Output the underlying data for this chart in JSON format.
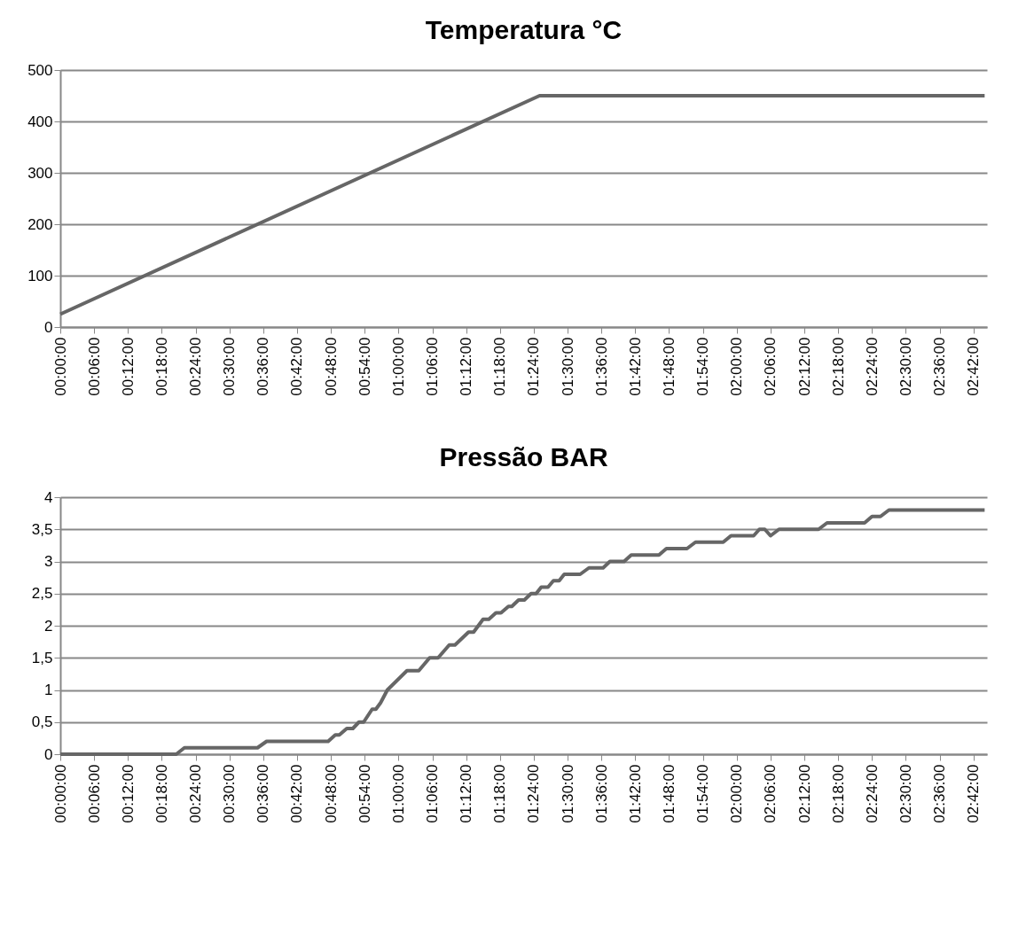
{
  "chart_data": [
    {
      "type": "line",
      "title": "Temperatura °C",
      "series": [
        {
          "color": "#666666",
          "x": [
            0,
            1.417,
            2.733
          ],
          "values": [
            25,
            450,
            450
          ]
        }
      ],
      "xlim": [
        0,
        2.74
      ],
      "xticks": [
        {
          "value": 0,
          "label": "00:00:00"
        },
        {
          "value": 0.1,
          "label": "00:06:00"
        },
        {
          "value": 0.2,
          "label": "00:12:00"
        },
        {
          "value": 0.3,
          "label": "00:18:00"
        },
        {
          "value": 0.4,
          "label": "00:24:00"
        },
        {
          "value": 0.5,
          "label": "00:30:00"
        },
        {
          "value": 0.6,
          "label": "00:36:00"
        },
        {
          "value": 0.7,
          "label": "00:42:00"
        },
        {
          "value": 0.8,
          "label": "00:48:00"
        },
        {
          "value": 0.9,
          "label": "00:54:00"
        },
        {
          "value": 1.0,
          "label": "01:00:00"
        },
        {
          "value": 1.1,
          "label": "01:06:00"
        },
        {
          "value": 1.2,
          "label": "01:12:00"
        },
        {
          "value": 1.3,
          "label": "01:18:00"
        },
        {
          "value": 1.4,
          "label": "01:24:00"
        },
        {
          "value": 1.5,
          "label": "01:30:00"
        },
        {
          "value": 1.6,
          "label": "01:36:00"
        },
        {
          "value": 1.7,
          "label": "01:42:00"
        },
        {
          "value": 1.8,
          "label": "01:48:00"
        },
        {
          "value": 1.9,
          "label": "01:54:00"
        },
        {
          "value": 2.0,
          "label": "02:00:00"
        },
        {
          "value": 2.1,
          "label": "02:06:00"
        },
        {
          "value": 2.2,
          "label": "02:12:00"
        },
        {
          "value": 2.3,
          "label": "02:18:00"
        },
        {
          "value": 2.4,
          "label": "02:24:00"
        },
        {
          "value": 2.5,
          "label": "02:30:00"
        },
        {
          "value": 2.6,
          "label": "02:36:00"
        },
        {
          "value": 2.7,
          "label": "02:42:00"
        }
      ],
      "ylim": [
        0,
        500
      ],
      "yticks": [
        0,
        100,
        200,
        300,
        400,
        500
      ],
      "grid": "y",
      "marker": "none",
      "line_style": "solid"
    },
    {
      "type": "line",
      "title": "Pressão BAR",
      "series": [
        {
          "color": "#666666",
          "x": [
            0,
            0.343,
            0.367,
            0.583,
            0.61,
            0.792,
            0.813,
            0.825,
            0.847,
            0.865,
            0.883,
            0.897,
            0.922,
            0.933,
            0.947,
            0.967,
            1.025,
            1.06,
            1.092,
            1.117,
            1.15,
            1.167,
            1.207,
            1.222,
            1.25,
            1.267,
            1.288,
            1.303,
            1.325,
            1.335,
            1.355,
            1.372,
            1.392,
            1.407,
            1.422,
            1.442,
            1.458,
            1.475,
            1.49,
            1.537,
            1.563,
            1.605,
            1.625,
            1.667,
            1.688,
            1.77,
            1.792,
            1.853,
            1.878,
            1.96,
            1.983,
            2.05,
            2.067,
            2.083,
            2.1,
            2.125,
            2.242,
            2.267,
            2.378,
            2.4,
            2.425,
            2.45,
            2.733
          ],
          "values": [
            0,
            0,
            0.1,
            0.1,
            0.2,
            0.2,
            0.3,
            0.3,
            0.4,
            0.4,
            0.5,
            0.5,
            0.7,
            0.7,
            0.8,
            1.0,
            1.3,
            1.3,
            1.5,
            1.5,
            1.7,
            1.7,
            1.9,
            1.9,
            2.1,
            2.1,
            2.2,
            2.2,
            2.3,
            2.3,
            2.4,
            2.4,
            2.5,
            2.5,
            2.6,
            2.6,
            2.7,
            2.7,
            2.8,
            2.8,
            2.9,
            2.9,
            3.0,
            3.0,
            3.1,
            3.1,
            3.2,
            3.2,
            3.3,
            3.3,
            3.4,
            3.4,
            3.5,
            3.5,
            3.4,
            3.5,
            3.5,
            3.6,
            3.6,
            3.7,
            3.7,
            3.8,
            3.8
          ]
        }
      ],
      "xlim": [
        0,
        2.74
      ],
      "xticks": [
        {
          "value": 0,
          "label": "00:00:00"
        },
        {
          "value": 0.1,
          "label": "00:06:00"
        },
        {
          "value": 0.2,
          "label": "00:12:00"
        },
        {
          "value": 0.3,
          "label": "00:18:00"
        },
        {
          "value": 0.4,
          "label": "00:24:00"
        },
        {
          "value": 0.5,
          "label": "00:30:00"
        },
        {
          "value": 0.6,
          "label": "00:36:00"
        },
        {
          "value": 0.7,
          "label": "00:42:00"
        },
        {
          "value": 0.8,
          "label": "00:48:00"
        },
        {
          "value": 0.9,
          "label": "00:54:00"
        },
        {
          "value": 1.0,
          "label": "01:00:00"
        },
        {
          "value": 1.1,
          "label": "01:06:00"
        },
        {
          "value": 1.2,
          "label": "01:12:00"
        },
        {
          "value": 1.3,
          "label": "01:18:00"
        },
        {
          "value": 1.4,
          "label": "01:24:00"
        },
        {
          "value": 1.5,
          "label": "01:30:00"
        },
        {
          "value": 1.6,
          "label": "01:36:00"
        },
        {
          "value": 1.7,
          "label": "01:42:00"
        },
        {
          "value": 1.8,
          "label": "01:48:00"
        },
        {
          "value": 1.9,
          "label": "01:54:00"
        },
        {
          "value": 2.0,
          "label": "02:00:00"
        },
        {
          "value": 2.1,
          "label": "02:06:00"
        },
        {
          "value": 2.2,
          "label": "02:12:00"
        },
        {
          "value": 2.3,
          "label": "02:18:00"
        },
        {
          "value": 2.4,
          "label": "02:24:00"
        },
        {
          "value": 2.5,
          "label": "02:30:00"
        },
        {
          "value": 2.6,
          "label": "02:36:00"
        },
        {
          "value": 2.7,
          "label": "02:42:00"
        }
      ],
      "ylim": [
        0,
        4
      ],
      "yticks": [
        0,
        {
          "value": 0.5,
          "label": "0,5"
        },
        1,
        {
          "value": 1.5,
          "label": "1,5"
        },
        2,
        {
          "value": 2.5,
          "label": "2,5"
        },
        3,
        {
          "value": 3.5,
          "label": "3,5"
        },
        4
      ],
      "grid": "y",
      "marker": "none",
      "line_style": "solid"
    }
  ]
}
